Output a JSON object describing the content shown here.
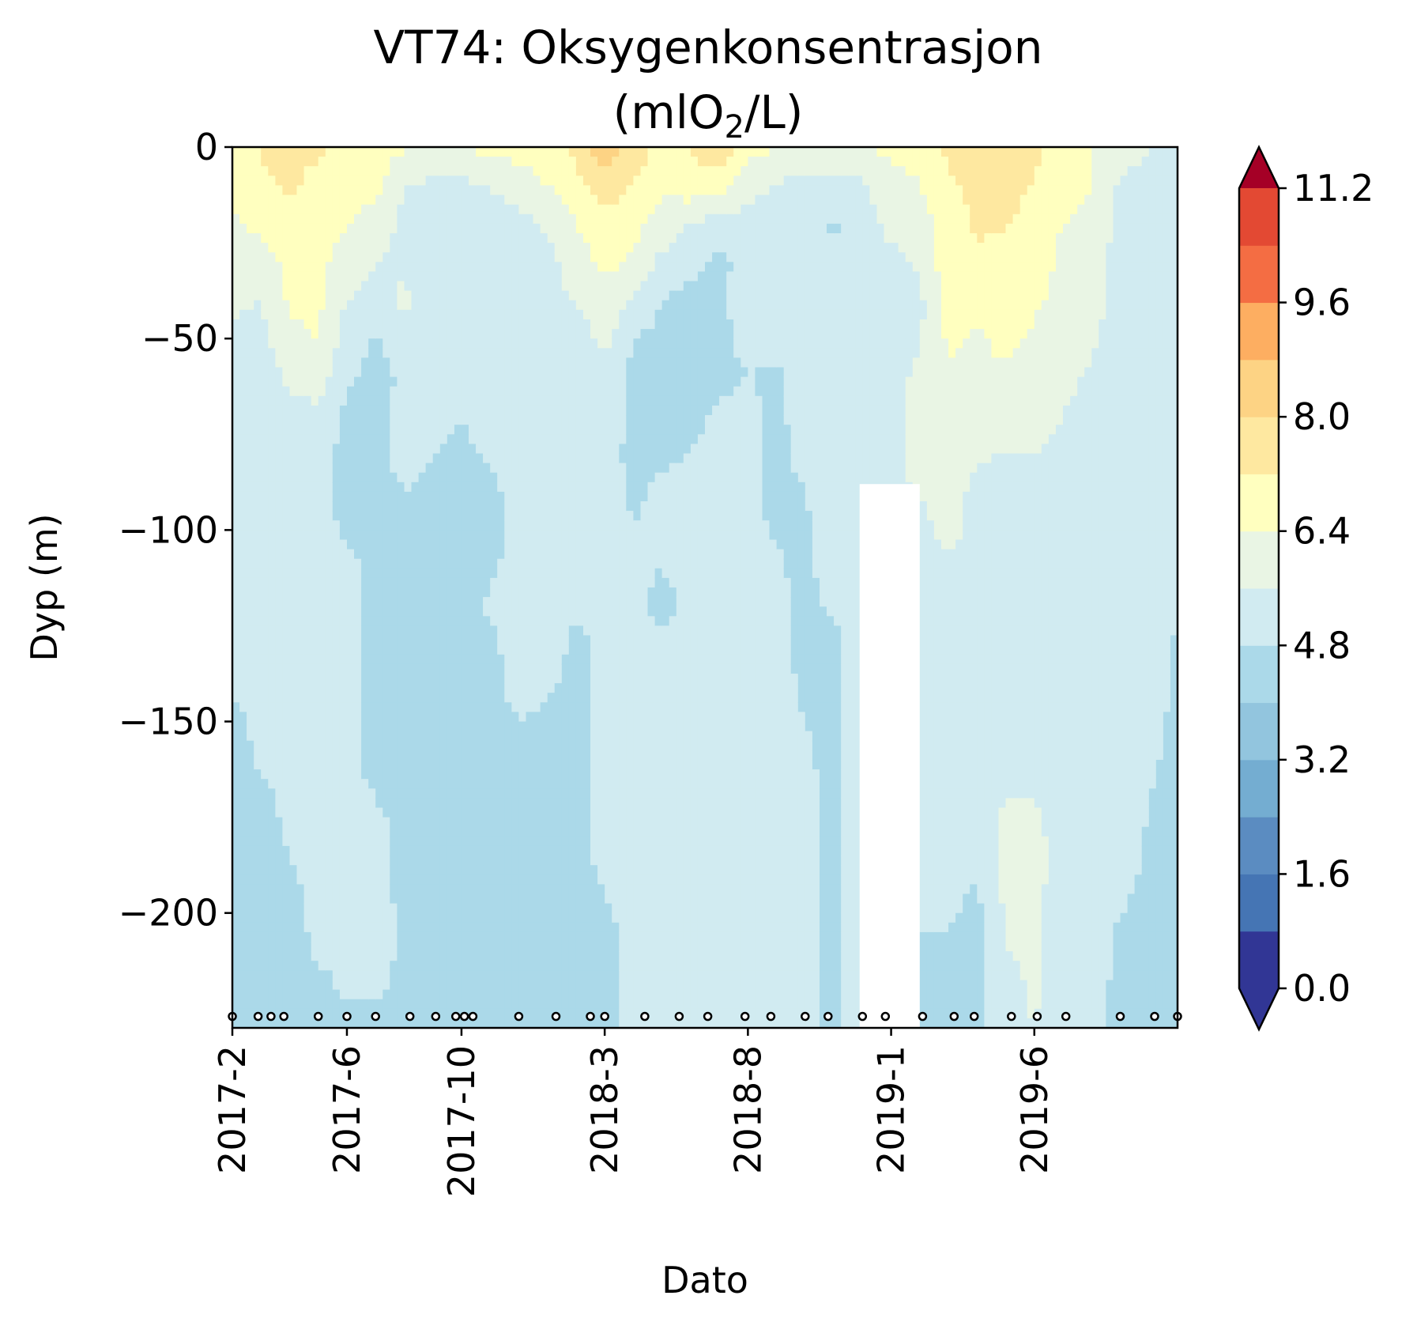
{
  "chart_data": {
    "type": "heatmap",
    "subtype": "filled-contour depth-time section",
    "title_line1": "VT74: Oksygenkonsentrasjon",
    "title_unit_pre": "(mlO",
    "title_unit_sub": "2",
    "title_unit_post": "/L)",
    "xlabel": "Dato",
    "ylabel": "Dyp (m)",
    "x_tick_labels": [
      "2017-2",
      "2017-6",
      "2017-10",
      "2018-3",
      "2018-8",
      "2019-1",
      "2019-6"
    ],
    "x_tick_months": [
      0,
      4,
      8,
      13,
      18,
      23,
      28
    ],
    "x_range_months": [
      0,
      33
    ],
    "x_origin": "2017-2",
    "y_ticks": [
      0,
      -50,
      -100,
      -150,
      -200
    ],
    "y_tick_labels": [
      "0",
      "−50",
      "−100",
      "−150",
      "−200"
    ],
    "ylim": [
      -230,
      0
    ],
    "colorbar": {
      "levels": [
        0.0,
        0.8,
        1.6,
        2.4,
        3.2,
        4.0,
        4.8,
        5.6,
        6.4,
        7.2,
        8.0,
        8.8,
        9.6,
        10.4,
        11.2
      ],
      "tick_values": [
        0.0,
        1.6,
        3.2,
        4.8,
        6.4,
        8.0,
        9.6,
        11.2
      ],
      "tick_labels": [
        "0.0",
        "1.6",
        "3.2",
        "4.8",
        "6.4",
        "8.0",
        "9.6",
        "11.2"
      ],
      "extend": "both",
      "colormap": "RdYlBu_r",
      "colors": [
        "#313695",
        "#4575b4",
        "#5b8cc1",
        "#74add1",
        "#92c5de",
        "#abd9e9",
        "#d1ebf1",
        "#e9f5e4",
        "#ffffbf",
        "#fee8a0",
        "#fdd384",
        "#fdae61",
        "#f46d43",
        "#e34933",
        "#d73027"
      ],
      "under_color": "#313695",
      "over_color": "#a50026"
    },
    "sample_dates_months": [
      0,
      0.9,
      1.35,
      1.8,
      3.0,
      4.0,
      5.0,
      6.2,
      7.1,
      7.8,
      8.1,
      8.4,
      10.0,
      11.3,
      12.5,
      13.0,
      14.4,
      15.6,
      16.6,
      17.9,
      18.8,
      20.0,
      20.8,
      22.0,
      22.8,
      24.1,
      25.2,
      25.9,
      27.2,
      28.1,
      29.1,
      31.0,
      32.2,
      33.0
    ],
    "sample_depth": -227,
    "no_data_gap": {
      "months": [
        21.9,
        24.0
      ],
      "depth_top": -88
    },
    "depths": [
      0,
      -10,
      -20,
      -30,
      -40,
      -50,
      -60,
      -70,
      -80,
      -90,
      -100,
      -110,
      -120,
      -130,
      -140,
      -150,
      -160,
      -170,
      -180,
      -190,
      -200,
      -210,
      -220,
      -230
    ],
    "profiles": [
      {
        "month": 0,
        "values": [
          6.6,
          6.5,
          6.3,
          5.9,
          5.7,
          5.5,
          5.2,
          5.0,
          5.0,
          5.0,
          5.0,
          5.0,
          5.0,
          5.0,
          5.0,
          4.6,
          4.5,
          4.5,
          4.5,
          4.5,
          4.5,
          4.5,
          4.5,
          4.5
        ]
      },
      {
        "month": 1,
        "values": [
          7.3,
          7.1,
          6.6,
          6.0,
          5.6,
          5.3,
          5.1,
          5.0,
          5.0,
          5.0,
          5.0,
          5.0,
          5.0,
          5.0,
          5.0,
          5.0,
          4.9,
          4.6,
          4.5,
          4.5,
          4.5,
          4.5,
          4.5,
          4.5
        ]
      },
      {
        "month": 2,
        "values": [
          7.4,
          7.3,
          6.9,
          6.6,
          6.5,
          6.2,
          5.8,
          5.2,
          5.0,
          5.0,
          5.0,
          5.0,
          5.0,
          5.0,
          5.0,
          5.0,
          5.0,
          5.0,
          4.9,
          4.7,
          4.6,
          4.5,
          4.5,
          4.5
        ]
      },
      {
        "month": 3,
        "values": [
          7.3,
          7.0,
          6.7,
          6.6,
          6.6,
          6.4,
          6.0,
          5.4,
          5.0,
          5.0,
          5.0,
          5.0,
          5.0,
          5.0,
          5.0,
          5.0,
          5.0,
          5.0,
          5.0,
          5.0,
          5.0,
          4.9,
          4.6,
          4.5
        ]
      },
      {
        "month": 4,
        "values": [
          7.0,
          6.7,
          6.5,
          6.0,
          5.6,
          5.2,
          4.9,
          4.6,
          4.6,
          4.6,
          4.7,
          5.0,
          5.0,
          5.0,
          5.0,
          5.0,
          5.0,
          5.0,
          5.0,
          5.0,
          5.0,
          5.0,
          4.9,
          4.6
        ]
      },
      {
        "month": 5,
        "values": [
          6.9,
          6.6,
          6.1,
          5.6,
          5.2,
          4.7,
          4.6,
          4.6,
          4.6,
          4.6,
          4.6,
          4.6,
          4.6,
          4.6,
          4.6,
          4.6,
          4.6,
          4.8,
          5.0,
          5.0,
          5.0,
          5.0,
          4.9,
          4.6
        ]
      },
      {
        "month": 6,
        "values": [
          6.5,
          5.6,
          5.4,
          5.4,
          5.8,
          5.2,
          4.9,
          5.0,
          5.0,
          4.8,
          4.6,
          4.6,
          4.6,
          4.6,
          4.6,
          4.6,
          4.6,
          4.6,
          4.6,
          4.6,
          4.7,
          4.7,
          4.6,
          4.6
        ]
      },
      {
        "month": 7,
        "values": [
          6.5,
          5.4,
          5.3,
          5.2,
          5.2,
          5.2,
          5.2,
          5.2,
          4.8,
          4.6,
          4.6,
          4.6,
          4.6,
          4.6,
          4.6,
          4.6,
          4.6,
          4.6,
          4.6,
          4.6,
          4.6,
          4.6,
          4.6,
          4.6
        ]
      },
      {
        "month": 8,
        "values": [
          6.4,
          5.4,
          4.9,
          4.8,
          5.2,
          5.3,
          5.3,
          4.8,
          4.6,
          4.6,
          4.6,
          4.6,
          4.6,
          4.6,
          4.6,
          4.6,
          4.6,
          4.6,
          4.6,
          4.6,
          4.6,
          4.6,
          4.6,
          4.6
        ]
      },
      {
        "month": 9,
        "values": [
          6.6,
          5.6,
          5.3,
          5.3,
          5.3,
          5.3,
          5.3,
          5.2,
          4.9,
          4.6,
          4.6,
          4.7,
          4.9,
          4.6,
          4.6,
          4.6,
          4.6,
          4.6,
          4.6,
          4.6,
          4.6,
          4.6,
          4.6,
          4.6
        ]
      },
      {
        "month": 10,
        "values": [
          6.7,
          6.0,
          5.4,
          5.3,
          5.3,
          5.3,
          5.3,
          5.3,
          5.2,
          5.1,
          4.9,
          5.1,
          5.3,
          5.2,
          5.0,
          4.8,
          4.6,
          4.6,
          4.6,
          4.6,
          4.6,
          4.6,
          4.6,
          4.6
        ]
      },
      {
        "month": 11,
        "values": [
          6.9,
          6.4,
          5.7,
          5.3,
          5.3,
          5.3,
          5.3,
          5.3,
          5.3,
          5.3,
          5.3,
          5.2,
          5.1,
          5.2,
          4.9,
          4.7,
          4.6,
          4.6,
          4.6,
          4.6,
          4.6,
          4.6,
          4.6,
          4.6
        ]
      },
      {
        "month": 12,
        "values": [
          7.3,
          7.0,
          6.4,
          6.0,
          5.7,
          5.2,
          5.0,
          5.0,
          5.0,
          5.0,
          5.0,
          5.0,
          4.9,
          4.6,
          4.6,
          4.6,
          4.6,
          4.6,
          4.6,
          4.6,
          4.6,
          4.6,
          4.6,
          4.6
        ]
      },
      {
        "month": 13,
        "values": [
          8.6,
          7.6,
          7.0,
          6.6,
          6.2,
          5.8,
          5.4,
          5.2,
          5.1,
          5.1,
          5.1,
          5.0,
          5.0,
          5.0,
          5.0,
          5.0,
          5.0,
          5.0,
          5.0,
          4.9,
          4.7,
          4.6,
          4.6,
          4.6
        ]
      },
      {
        "month": 14,
        "values": [
          7.6,
          7.2,
          6.6,
          6.3,
          5.4,
          4.8,
          4.6,
          4.6,
          4.6,
          4.7,
          4.8,
          4.9,
          5.0,
          5.0,
          5.0,
          5.0,
          5.0,
          5.0,
          5.0,
          5.0,
          5.0,
          5.0,
          5.0,
          5.0
        ]
      },
      {
        "month": 15,
        "values": [
          7.0,
          6.5,
          6.1,
          5.4,
          4.8,
          4.6,
          4.6,
          4.6,
          4.7,
          4.9,
          5.1,
          4.8,
          4.6,
          4.9,
          5.0,
          5.0,
          5.0,
          5.0,
          5.0,
          5.0,
          5.0,
          5.0,
          5.0,
          5.0
        ]
      },
      {
        "month": 16,
        "values": [
          7.2,
          6.9,
          5.6,
          5.0,
          4.6,
          4.6,
          4.6,
          4.6,
          4.8,
          5.0,
          5.0,
          5.0,
          5.0,
          5.0,
          5.0,
          5.0,
          5.0,
          5.0,
          5.0,
          5.0,
          5.0,
          5.0,
          5.0,
          5.0
        ]
      },
      {
        "month": 17,
        "values": [
          7.8,
          6.7,
          5.2,
          4.6,
          4.6,
          4.6,
          4.6,
          4.9,
          5.0,
          5.0,
          5.0,
          5.0,
          5.0,
          5.0,
          5.0,
          5.0,
          5.0,
          5.0,
          5.0,
          5.0,
          5.0,
          5.0,
          5.0,
          5.0
        ]
      },
      {
        "month": 18,
        "values": [
          6.6,
          5.9,
          5.3,
          5.1,
          5.3,
          5.0,
          4.8,
          5.0,
          5.0,
          5.0,
          5.0,
          5.0,
          5.0,
          5.0,
          5.0,
          5.0,
          5.0,
          5.0,
          5.0,
          5.0,
          5.0,
          5.0,
          5.0,
          5.0
        ]
      },
      {
        "month": 19,
        "values": [
          6.5,
          5.5,
          5.3,
          5.2,
          5.2,
          5.0,
          4.7,
          4.6,
          4.6,
          4.6,
          4.7,
          4.9,
          5.0,
          5.0,
          5.0,
          5.0,
          5.0,
          5.0,
          5.0,
          5.0,
          5.0,
          5.0,
          5.0,
          5.0
        ]
      },
      {
        "month": 20,
        "values": [
          6.5,
          5.4,
          5.0,
          5.2,
          5.2,
          5.2,
          5.2,
          5.2,
          5.0,
          4.8,
          4.7,
          4.6,
          4.6,
          4.6,
          4.7,
          4.8,
          4.9,
          5.0,
          5.0,
          5.0,
          5.0,
          5.0,
          5.0,
          5.0
        ]
      },
      {
        "month": 21,
        "values": [
          6.5,
          5.3,
          4.7,
          4.9,
          5.2,
          5.2,
          5.2,
          5.2,
          5.2,
          5.2,
          5.2,
          5.2,
          4.9,
          4.6,
          4.6,
          4.6,
          4.6,
          4.6,
          4.6,
          4.6,
          4.6,
          4.6,
          4.6,
          4.6
        ]
      },
      {
        "month": 22,
        "values": [
          6.4,
          5.5,
          5.3,
          5.3,
          5.3,
          5.3,
          5.3,
          5.3,
          5.3,
          5.3,
          5.3,
          5.3,
          5.3,
          5.3,
          5.3,
          5.3,
          5.3,
          5.3,
          5.3,
          5.3,
          5.3,
          5.3,
          5.3,
          5.3
        ]
      },
      {
        "month": 23,
        "values": [
          6.6,
          6.1,
          5.8,
          5.4,
          5.3,
          5.3,
          5.3,
          5.3,
          5.3,
          5.3,
          5.3,
          5.3,
          5.3,
          5.3,
          5.3,
          5.3,
          5.3,
          5.3,
          5.3,
          5.2,
          5.0,
          4.7,
          4.6,
          4.6
        ]
      },
      {
        "month": 24,
        "values": [
          6.6,
          6.4,
          6.0,
          5.7,
          5.4,
          5.5,
          5.8,
          6.0,
          6.1,
          5.6,
          5.3,
          5.3,
          5.3,
          5.3,
          5.3,
          5.3,
          5.3,
          5.3,
          5.2,
          5.1,
          4.9,
          4.7,
          4.6,
          4.6
        ]
      },
      {
        "month": 25,
        "values": [
          7.4,
          7.1,
          6.7,
          6.9,
          6.8,
          6.5,
          6.3,
          6.2,
          6.2,
          6.1,
          5.9,
          5.4,
          5.3,
          5.3,
          5.3,
          5.3,
          5.3,
          5.3,
          5.3,
          5.0,
          4.9,
          4.7,
          4.6,
          4.6
        ]
      },
      {
        "month": 26,
        "values": [
          7.5,
          7.4,
          7.3,
          7.1,
          6.6,
          6.3,
          6.2,
          6.1,
          5.7,
          5.3,
          5.3,
          5.3,
          5.3,
          5.3,
          5.3,
          5.3,
          5.3,
          5.3,
          5.2,
          4.8,
          4.6,
          4.6,
          4.6,
          4.6
        ]
      },
      {
        "month": 27,
        "values": [
          7.5,
          7.7,
          7.3,
          6.8,
          6.7,
          6.6,
          6.3,
          6.0,
          5.6,
          5.3,
          5.3,
          5.3,
          5.3,
          5.3,
          5.3,
          5.3,
          5.3,
          5.6,
          5.8,
          5.8,
          5.7,
          5.6,
          5.4,
          5.3
        ]
      },
      {
        "month": 28,
        "values": [
          7.4,
          7.1,
          6.6,
          6.6,
          6.5,
          6.3,
          6.1,
          5.9,
          5.6,
          5.3,
          5.3,
          5.3,
          5.3,
          5.3,
          5.3,
          5.3,
          5.3,
          5.6,
          5.8,
          5.8,
          5.7,
          5.7,
          5.7,
          5.6
        ]
      },
      {
        "month": 29,
        "values": [
          6.9,
          6.6,
          6.4,
          6.3,
          6.2,
          6.0,
          5.8,
          5.6,
          5.4,
          5.3,
          5.3,
          5.3,
          5.3,
          5.3,
          5.3,
          5.3,
          5.3,
          5.3,
          5.3,
          5.3,
          5.3,
          5.3,
          5.3,
          5.3
        ]
      },
      {
        "month": 30,
        "values": [
          6.4,
          6.4,
          6.2,
          6.0,
          5.9,
          5.7,
          5.5,
          5.4,
          5.3,
          5.3,
          5.3,
          5.3,
          5.3,
          5.3,
          5.3,
          5.3,
          5.3,
          5.3,
          5.3,
          5.3,
          5.3,
          5.3,
          5.1,
          4.9
        ]
      },
      {
        "month": 31,
        "values": [
          6.1,
          5.4,
          5.3,
          5.3,
          5.3,
          5.3,
          5.3,
          5.3,
          5.3,
          5.3,
          5.3,
          5.3,
          5.3,
          5.3,
          5.3,
          5.3,
          5.3,
          5.3,
          5.3,
          5.1,
          4.8,
          4.6,
          4.6,
          4.6
        ]
      },
      {
        "month": 32,
        "values": [
          5.6,
          5.3,
          5.3,
          5.3,
          5.3,
          5.3,
          5.3,
          5.3,
          5.3,
          5.3,
          5.3,
          5.3,
          5.3,
          5.3,
          5.3,
          5.1,
          4.9,
          4.8,
          4.7,
          4.6,
          4.6,
          4.6,
          4.6,
          4.6
        ]
      },
      {
        "month": 33,
        "values": [
          5.6,
          5.3,
          5.3,
          5.3,
          5.3,
          5.3,
          5.3,
          5.3,
          5.3,
          5.2,
          5.0,
          4.9,
          4.8,
          4.7,
          4.6,
          4.6,
          4.6,
          4.6,
          4.6,
          4.6,
          4.6,
          4.6,
          4.6,
          4.6
        ]
      }
    ]
  }
}
